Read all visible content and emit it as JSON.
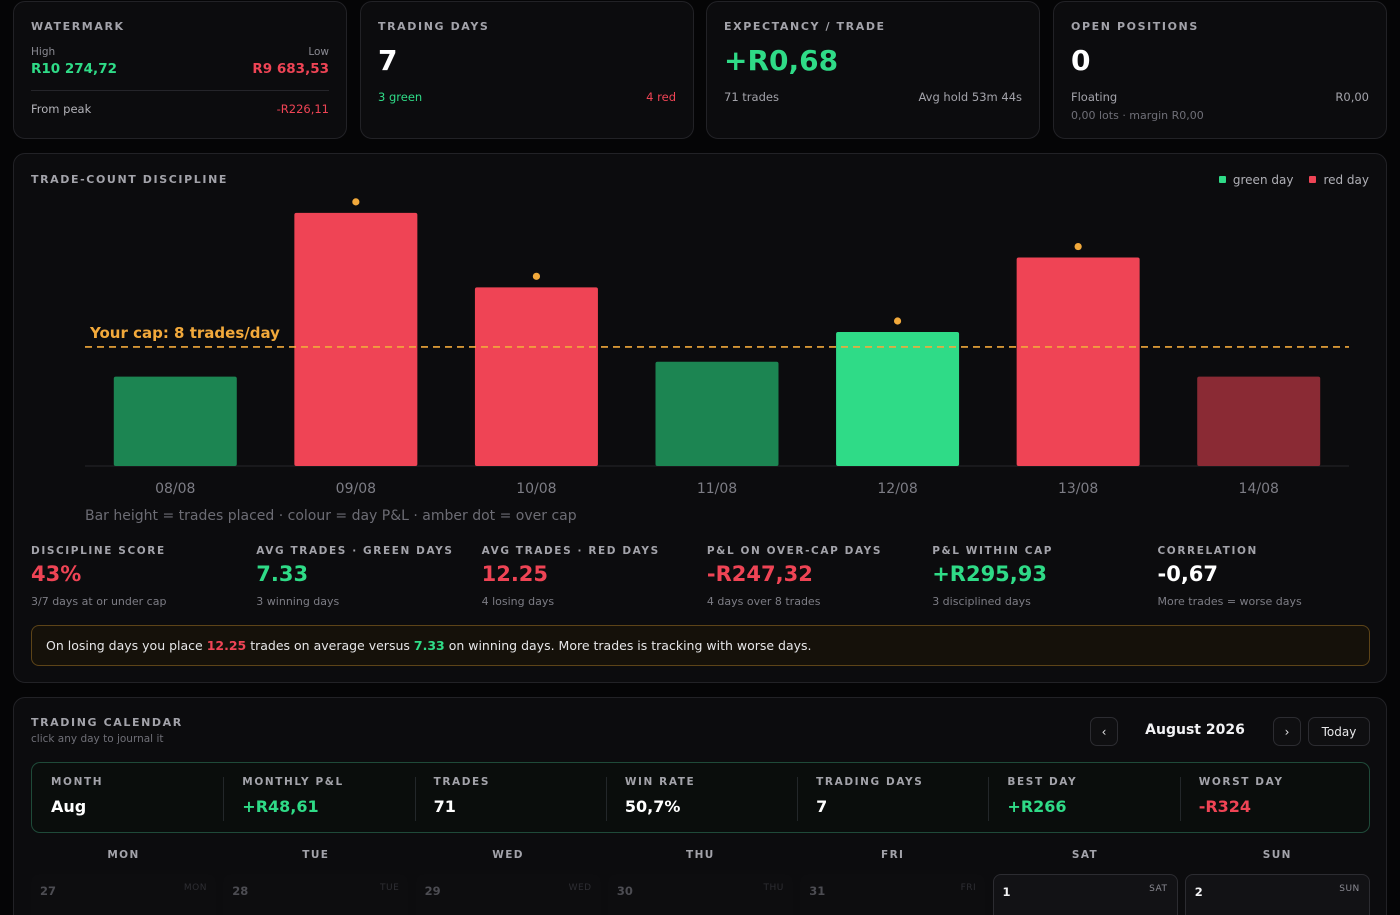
{
  "watermark": {
    "label": "WATERMARK",
    "high_label": "High",
    "high_value": "R10 274,72",
    "low_label": "Low",
    "low_value": "R9 683,53",
    "from_peak_label": "From peak",
    "from_peak_value": "-R226,11"
  },
  "trading_days": {
    "label": "TRADING DAYS",
    "value": "7",
    "green": "3 green",
    "red": "4 red"
  },
  "expectancy": {
    "label": "EXPECTANCY / TRADE",
    "value": "+R0,68",
    "trades": "71 trades",
    "avg_hold": "Avg hold 53m 44s"
  },
  "open_positions": {
    "label": "OPEN POSITIONS",
    "value": "0",
    "floating_label": "Floating",
    "floating_value": "R0,00",
    "lots": "0,00 lots · margin R0,00"
  },
  "discipline": {
    "title": "TRADE-COUNT DISCIPLINE",
    "legend_green": "green day",
    "legend_red": "red day",
    "caption": "Bar height = trades placed · colour = day P&L · amber dot = over cap",
    "metrics": [
      {
        "label": "DISCIPLINE SCORE",
        "value": "43%",
        "sub": "3/7 days at or under cap",
        "tone": "red"
      },
      {
        "label": "AVG TRADES · GREEN DAYS",
        "value": "7.33",
        "sub": "3 winning days",
        "tone": "green"
      },
      {
        "label": "AVG TRADES · RED DAYS",
        "value": "12.25",
        "sub": "4 losing days",
        "tone": "red"
      },
      {
        "label": "P&L ON OVER-CAP DAYS",
        "value": "-R247,32",
        "sub": "4 days over 8 trades",
        "tone": "red"
      },
      {
        "label": "P&L WITHIN CAP",
        "value": "+R295,93",
        "sub": "3 disciplined days",
        "tone": "green"
      },
      {
        "label": "CORRELATION",
        "value": "-0,67",
        "sub": "More trades = worse days",
        "tone": "white"
      }
    ],
    "insight": {
      "part1": "On losing days you place ",
      "red_avg": "12.25",
      "part2": " trades on average versus ",
      "green_avg": "7.33",
      "part3": " on winning days. More trades is tracking with worse days."
    }
  },
  "chart_data": {
    "type": "bar",
    "categories": [
      "08/08",
      "09/08",
      "10/08",
      "11/08",
      "12/08",
      "13/08",
      "14/08"
    ],
    "values": [
      6,
      17,
      12,
      7,
      9,
      14,
      6
    ],
    "day_result": [
      "green",
      "red",
      "red",
      "green",
      "green",
      "red",
      "red"
    ],
    "colors": [
      "#1c8552",
      "#ef4455",
      "#ef4455",
      "#1c8552",
      "#2fdb87",
      "#ef4455",
      "#8a2a34"
    ],
    "over_cap": [
      false,
      true,
      true,
      false,
      true,
      true,
      false
    ],
    "cap": 8,
    "cap_label": "Your cap: 8 trades/day",
    "cap_color": "#f2a93b",
    "ylim": [
      0,
      18
    ],
    "legend_position": "top-right"
  },
  "calendar": {
    "title": "TRADING CALENDAR",
    "subtitle": "click any day to journal it",
    "prev": "‹",
    "next": "›",
    "month_label": "August 2026",
    "today": "Today",
    "summary": [
      {
        "label": "MONTH",
        "value": "Aug",
        "tone": "white"
      },
      {
        "label": "MONTHLY P&L",
        "value": "+R48,61",
        "tone": "green"
      },
      {
        "label": "TRADES",
        "value": "71",
        "tone": "white"
      },
      {
        "label": "WIN RATE",
        "value": "50,7%",
        "tone": "white"
      },
      {
        "label": "TRADING DAYS",
        "value": "7",
        "tone": "white"
      },
      {
        "label": "BEST DAY",
        "value": "+R266",
        "tone": "green"
      },
      {
        "label": "WORST DAY",
        "value": "-R324",
        "tone": "red"
      }
    ],
    "weekdays": [
      "MON",
      "TUE",
      "WED",
      "THU",
      "FRI",
      "SAT",
      "SUN"
    ],
    "days": [
      {
        "num": "27",
        "dow": "MON",
        "in_month": false
      },
      {
        "num": "28",
        "dow": "TUE",
        "in_month": false
      },
      {
        "num": "29",
        "dow": "WED",
        "in_month": false
      },
      {
        "num": "30",
        "dow": "THU",
        "in_month": false
      },
      {
        "num": "31",
        "dow": "FRI",
        "in_month": false
      },
      {
        "num": "1",
        "dow": "SAT",
        "in_month": true
      },
      {
        "num": "2",
        "dow": "SUN",
        "in_month": true
      }
    ]
  }
}
